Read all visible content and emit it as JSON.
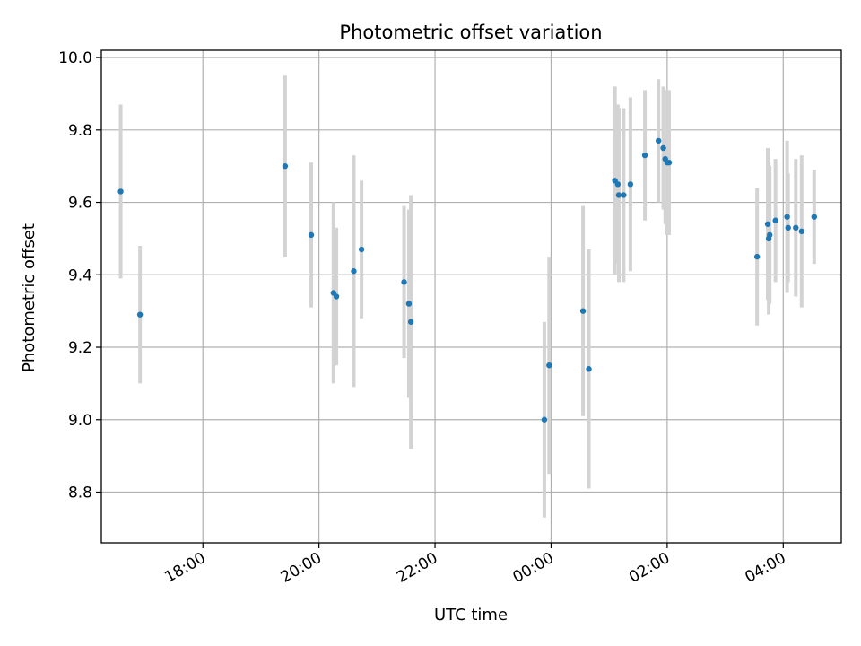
{
  "chart_data": {
    "type": "scatter",
    "title": "Photometric offset variation",
    "xlabel": "UTC time",
    "ylabel": "Photometric offset",
    "x_axis": "time",
    "xlim": [
      "16:15",
      "05:00"
    ],
    "ylim": [
      8.66,
      10.02
    ],
    "xticks": [
      "18:00",
      "20:00",
      "22:00",
      "00:00",
      "02:00",
      "04:00"
    ],
    "yticks": [
      "8.8",
      "9.0",
      "9.2",
      "9.4",
      "9.6",
      "9.8",
      "10.0"
    ],
    "grid": true,
    "marker_color": "#1f77b4",
    "errorbar_color": "#d3d3d3",
    "points": [
      {
        "t": "16:35",
        "y": 9.63,
        "err": 0.24
      },
      {
        "t": "16:55",
        "y": 9.29,
        "err": 0.19
      },
      {
        "t": "19:25",
        "y": 9.7,
        "err": 0.25
      },
      {
        "t": "19:52",
        "y": 9.51,
        "err": 0.2
      },
      {
        "t": "20:15",
        "y": 9.35,
        "err": 0.25
      },
      {
        "t": "20:18",
        "y": 9.34,
        "err": 0.19
      },
      {
        "t": "20:36",
        "y": 9.41,
        "err": 0.32
      },
      {
        "t": "20:44",
        "y": 9.47,
        "err": 0.19
      },
      {
        "t": "21:28",
        "y": 9.38,
        "err": 0.21
      },
      {
        "t": "21:33",
        "y": 9.32,
        "err": 0.26
      },
      {
        "t": "21:35",
        "y": 9.27,
        "err": 0.35
      },
      {
        "t": "23:53",
        "y": 9.0,
        "err": 0.27
      },
      {
        "t": "23:58",
        "y": 9.15,
        "err": 0.3
      },
      {
        "t": "00:33",
        "y": 9.3,
        "err": 0.29
      },
      {
        "t": "00:39",
        "y": 9.14,
        "err": 0.33
      },
      {
        "t": "01:06",
        "y": 9.66,
        "err": 0.26
      },
      {
        "t": "01:09",
        "y": 9.65,
        "err": 0.22
      },
      {
        "t": "01:10",
        "y": 9.62,
        "err": 0.24
      },
      {
        "t": "01:15",
        "y": 9.62,
        "err": 0.24
      },
      {
        "t": "01:22",
        "y": 9.65,
        "err": 0.24
      },
      {
        "t": "01:37",
        "y": 9.73,
        "err": 0.18
      },
      {
        "t": "01:51",
        "y": 9.77,
        "err": 0.17
      },
      {
        "t": "01:56",
        "y": 9.75,
        "err": 0.17
      },
      {
        "t": "01:58",
        "y": 9.72,
        "err": 0.18
      },
      {
        "t": "02:00",
        "y": 9.71,
        "err": 0.2
      },
      {
        "t": "02:02",
        "y": 9.71,
        "err": 0.2
      },
      {
        "t": "03:33",
        "y": 9.45,
        "err": 0.19
      },
      {
        "t": "03:44",
        "y": 9.54,
        "err": 0.21
      },
      {
        "t": "03:45",
        "y": 9.5,
        "err": 0.21
      },
      {
        "t": "03:46",
        "y": 9.51,
        "err": 0.19
      },
      {
        "t": "03:52",
        "y": 9.55,
        "err": 0.17
      },
      {
        "t": "04:04",
        "y": 9.56,
        "err": 0.21
      },
      {
        "t": "04:05",
        "y": 9.53,
        "err": 0.15
      },
      {
        "t": "04:13",
        "y": 9.53,
        "err": 0.19
      },
      {
        "t": "04:19",
        "y": 9.52,
        "err": 0.21
      },
      {
        "t": "04:32",
        "y": 9.56,
        "err": 0.13
      }
    ]
  }
}
